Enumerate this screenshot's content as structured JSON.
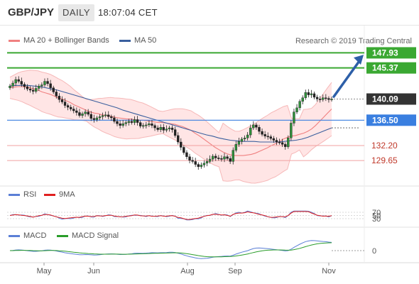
{
  "header": {
    "symbol": "GBP/JPY",
    "period": "DAILY",
    "timestamp": "18:07:04 CET"
  },
  "legend": {
    "ma20": {
      "label": "MA 20 + Bollinger Bands",
      "color": "#f08080"
    },
    "ma50": {
      "label": "MA 50",
      "color": "#3a5f9e"
    },
    "credit": "Research © 2019 Trading Central"
  },
  "rsi_legend": {
    "rsi": {
      "label": "RSI",
      "color": "#5b7fd6"
    },
    "ma9": {
      "label": "9MA",
      "color": "#e02020"
    }
  },
  "macd_legend": {
    "macd": {
      "label": "MACD",
      "color": "#5b7fd6"
    },
    "signal": {
      "label": "MACD Signal",
      "color": "#2a9d2a"
    }
  },
  "chart_data": {
    "type": "candlestick",
    "title": "GBP/JPY",
    "period": "DAILY",
    "x_labels": [
      "May",
      "Jun",
      "Aug",
      "Sep",
      "Nov"
    ],
    "price_levels": [
      {
        "name": "resistance-2",
        "value": "147.93",
        "kind": "resistance"
      },
      {
        "name": "resistance-1",
        "value": "145.37",
        "kind": "resistance"
      },
      {
        "name": "last-price",
        "value": "140.09",
        "kind": "last"
      },
      {
        "name": "pivot",
        "value": "136.50",
        "kind": "pivot"
      },
      {
        "name": "support-1",
        "value": "132.20",
        "kind": "support"
      },
      {
        "name": "support-2",
        "value": "129.65",
        "kind": "support"
      }
    ],
    "closes": [
      142.3,
      142.8,
      143.4,
      143.1,
      142.6,
      142.2,
      141.8,
      141.6,
      141.4,
      141.9,
      142.3,
      142.5,
      143.1,
      142.7,
      142.0,
      141.3,
      140.6,
      140.0,
      139.6,
      139.0,
      138.7,
      138.4,
      138.1,
      137.8,
      137.3,
      137.6,
      137.9,
      137.5,
      136.8,
      136.6,
      136.9,
      137.1,
      137.3,
      137.4,
      137.1,
      136.9,
      136.3,
      135.9,
      135.6,
      135.9,
      136.1,
      136.3,
      136.1,
      136.6,
      136.1,
      135.5,
      135.6,
      135.7,
      135.9,
      135.6,
      135.2,
      134.9,
      135.3,
      134.8,
      135.0,
      135.2,
      134.9,
      133.9,
      132.8,
      131.9,
      131.0,
      130.3,
      129.7,
      129.5,
      129.0,
      128.6,
      128.9,
      129.2,
      129.5,
      129.9,
      130.4,
      130.1,
      130.0,
      129.9,
      130.3,
      130.0,
      129.5,
      131.4,
      132.4,
      132.9,
      133.3,
      133.5,
      134.0,
      135.2,
      135.7,
      135.3,
      134.6,
      134.1,
      133.8,
      133.7,
      133.4,
      133.1,
      132.8,
      132.7,
      132.4,
      132.0,
      133.5,
      136.0,
      137.9,
      138.6,
      139.7,
      140.3,
      141.2,
      140.8,
      141.0,
      140.4,
      140.1,
      140.0,
      140.3,
      140.2,
      140.0,
      140.09
    ],
    "ma20": [
      142.0,
      142.1,
      142.2,
      142.2,
      142.1,
      142.0,
      141.8,
      141.6,
      141.3,
      141.1,
      140.9,
      140.6,
      140.3,
      140.1,
      139.8,
      139.5,
      139.1,
      138.8,
      138.5,
      138.2,
      137.9,
      137.7,
      137.6,
      137.4,
      137.3,
      137.2,
      137.0,
      136.9,
      136.8,
      136.7,
      136.7,
      136.6,
      136.5,
      136.5,
      136.4,
      136.3,
      136.2,
      136.1,
      136.1,
      136.0,
      135.9,
      135.8,
      135.6,
      135.4,
      135.1,
      134.8,
      134.3,
      133.9,
      133.4,
      132.9,
      132.4,
      131.9,
      131.5,
      131.1,
      130.8,
      130.6,
      130.5,
      130.5,
      130.5,
      130.6,
      130.7,
      130.9,
      131.2,
      131.5,
      131.8,
      132.2,
      132.5,
      132.9,
      133.3,
      133.6,
      133.8,
      133.9,
      134.1,
      134.3,
      134.6,
      135.0,
      135.6,
      136.3,
      137.0,
      137.7,
      138.4
    ],
    "ma50": [
      142.3,
      142.4,
      142.4,
      142.4,
      142.3,
      142.2,
      142.0,
      141.8,
      141.6,
      141.3,
      141.0,
      140.7,
      140.4,
      140.1,
      139.8,
      139.5,
      139.2,
      138.9,
      138.6,
      138.2,
      137.9,
      137.6,
      137.3,
      137.0,
      136.7,
      136.4,
      136.1,
      135.8,
      135.5,
      135.2,
      134.9,
      134.6,
      134.3,
      134.0,
      133.8,
      133.5,
      133.3,
      133.1,
      133.0,
      132.9,
      132.9,
      132.9,
      132.8,
      132.8,
      132.8,
      132.8,
      132.9,
      133.0,
      133.1,
      133.3,
      133.6,
      134.0,
      134.4,
      134.8,
      135.2
    ],
    "rsi_labels": [
      "70",
      "50",
      "30"
    ],
    "macd_labels": [
      "0"
    ]
  }
}
